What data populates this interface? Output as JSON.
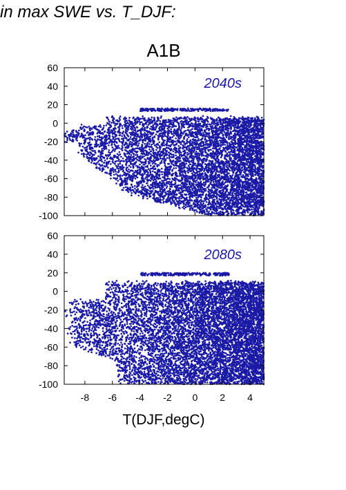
{
  "figure_title": "in max SWE vs. T_DJF:",
  "chart_data": [
    {
      "type": "scatter",
      "title": "A1B",
      "annotation": "2040s",
      "xlabel": "",
      "ylabel": "",
      "xlim": [
        -9.5,
        5.0
      ],
      "ylim": [
        -100,
        60
      ],
      "yticks": [
        -100,
        -80,
        -60,
        -40,
        -20,
        0,
        20,
        40,
        60
      ],
      "point_color": "#1a1aa6",
      "annotation_color": "#1a1aa6",
      "distribution": {
        "x_min": -9.5,
        "x_max": 5.0,
        "upper_bound_y": 6,
        "upper_band_y": 16,
        "upper_band_x": [
          -4.0,
          2.5
        ],
        "tail_start_x": -8.5,
        "tail_upper_y": -2,
        "tail_lower_y": -30,
        "bottom_y": -100,
        "bottom_reached_from_x": 1.0
      }
    },
    {
      "type": "scatter",
      "title": "",
      "annotation": "2080s",
      "xlabel": "T(DJF,degC)",
      "ylabel": "",
      "xlim": [
        -9.5,
        5.0
      ],
      "ylim": [
        -100,
        60
      ],
      "xticks": [
        -8,
        -6,
        -4,
        -2,
        0,
        2,
        4
      ],
      "yticks": [
        -100,
        -80,
        -60,
        -40,
        -20,
        0,
        20,
        40,
        60
      ],
      "point_color": "#1a1aa6",
      "annotation_color": "#1a1aa6",
      "distribution": {
        "x_min": -9.5,
        "x_max": 5.0,
        "upper_bound_y": 10,
        "upper_band_y": 20,
        "upper_band_x": [
          -4.0,
          2.5
        ],
        "tail_start_x": -9.3,
        "tail_upper_y": -10,
        "tail_lower_y": -55,
        "bottom_y": -100,
        "bottom_reached_from_x": -5.5
      }
    }
  ]
}
